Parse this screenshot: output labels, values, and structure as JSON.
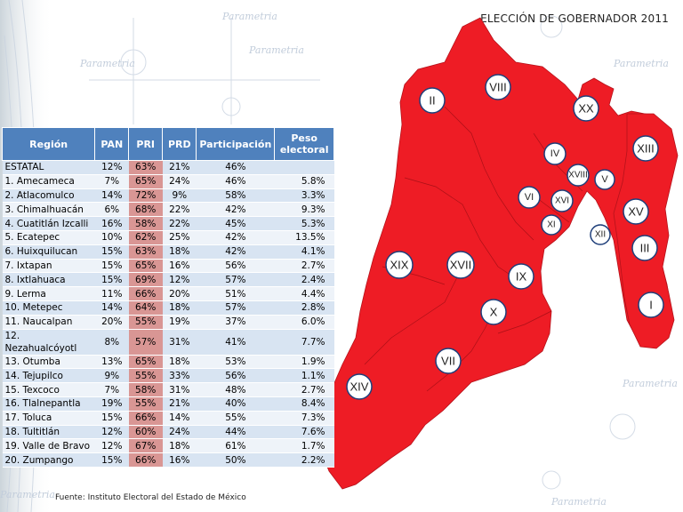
{
  "title": "ELECCIÓN DE GOBERNADOR 2011",
  "source": "Fuente: Instituto Electoral del Estado de México",
  "watermark": "Parametria",
  "colors": {
    "map_fill": "#ee1c25",
    "header_bg": "#4f81bd",
    "pri_cell": "#d99694",
    "row_odd": "#d8e4f2",
    "row_even": "#eef3f9"
  },
  "table": {
    "headers": [
      "Región",
      "PAN",
      "PRI",
      "PRD",
      "Participación",
      "Peso electoral"
    ],
    "rows": [
      {
        "region": "ESTATAL",
        "pan": "12%",
        "pri": "63%",
        "prd": "21%",
        "part": "46%",
        "peso": ""
      },
      {
        "region": "1. Amecameca",
        "pan": "7%",
        "pri": "65%",
        "prd": "24%",
        "part": "46%",
        "peso": "5.8%"
      },
      {
        "region": "2. Atlacomulco",
        "pan": "14%",
        "pri": "72%",
        "prd": "9%",
        "part": "58%",
        "peso": "3.3%"
      },
      {
        "region": "3. Chimalhuacán",
        "pan": "6%",
        "pri": "68%",
        "prd": "22%",
        "part": "42%",
        "peso": "9.3%"
      },
      {
        "region": "4. Cuatitlán Izcalli",
        "pan": "16%",
        "pri": "58%",
        "prd": "22%",
        "part": "45%",
        "peso": "5.3%"
      },
      {
        "region": "5. Ecatepec",
        "pan": "10%",
        "pri": "62%",
        "prd": "25%",
        "part": "42%",
        "peso": "13.5%"
      },
      {
        "region": "6. Huixquilucan",
        "pan": "15%",
        "pri": "63%",
        "prd": "18%",
        "part": "42%",
        "peso": "4.1%"
      },
      {
        "region": "7. Ixtapan",
        "pan": "15%",
        "pri": "65%",
        "prd": "16%",
        "part": "56%",
        "peso": "2.7%"
      },
      {
        "region": "8. Ixtlahuaca",
        "pan": "15%",
        "pri": "69%",
        "prd": "12%",
        "part": "57%",
        "peso": "2.4%"
      },
      {
        "region": "9. Lerma",
        "pan": "11%",
        "pri": "66%",
        "prd": "20%",
        "part": "51%",
        "peso": "4.4%"
      },
      {
        "region": "10. Metepec",
        "pan": "14%",
        "pri": "64%",
        "prd": "18%",
        "part": "57%",
        "peso": "2.8%"
      },
      {
        "region": "11. Naucalpan",
        "pan": "20%",
        "pri": "55%",
        "prd": "19%",
        "part": "37%",
        "peso": "6.0%"
      },
      {
        "region": "12. Nezahualcóyotl",
        "pan": "8%",
        "pri": "57%",
        "prd": "31%",
        "part": "41%",
        "peso": "7.7%"
      },
      {
        "region": "13. Otumba",
        "pan": "13%",
        "pri": "65%",
        "prd": "18%",
        "part": "53%",
        "peso": "1.9%"
      },
      {
        "region": "14. Tejupilco",
        "pan": "9%",
        "pri": "55%",
        "prd": "33%",
        "part": "56%",
        "peso": "1.1%"
      },
      {
        "region": "15. Texcoco",
        "pan": "7%",
        "pri": "58%",
        "prd": "31%",
        "part": "48%",
        "peso": "2.7%"
      },
      {
        "region": "16. Tlalnepantla",
        "pan": "19%",
        "pri": "55%",
        "prd": "21%",
        "part": "40%",
        "peso": "8.4%"
      },
      {
        "region": "17. Toluca",
        "pan": "15%",
        "pri": "66%",
        "prd": "14%",
        "part": "55%",
        "peso": "7.3%"
      },
      {
        "region": "18. Tultitlán",
        "pan": "12%",
        "pri": "60%",
        "prd": "24%",
        "part": "44%",
        "peso": "7.6%"
      },
      {
        "region": "19. Valle de Bravo",
        "pan": "12%",
        "pri": "67%",
        "prd": "18%",
        "part": "61%",
        "peso": "1.7%"
      },
      {
        "region": "20. Zumpango",
        "pan": "15%",
        "pri": "66%",
        "prd": "16%",
        "part": "50%",
        "peso": "2.2%"
      }
    ]
  },
  "map_labels": [
    "I",
    "II",
    "III",
    "IV",
    "V",
    "VI",
    "VII",
    "VIII",
    "IX",
    "X",
    "XI",
    "XII",
    "XIII",
    "XIV",
    "XV",
    "XVI",
    "XVII",
    "XVIII",
    "XIX",
    "XX"
  ]
}
